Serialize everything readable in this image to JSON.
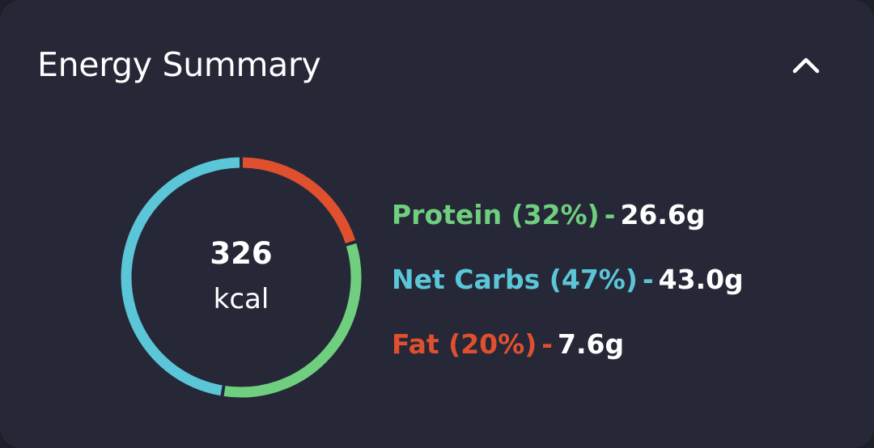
{
  "card": {
    "title": "Energy Summary",
    "collapse_icon": "chevron-up-icon"
  },
  "energy": {
    "value": "326",
    "unit": "kcal"
  },
  "macros": [
    {
      "key": "protein",
      "label": "Protein (32%)",
      "separator": "-",
      "amount": "26.6g",
      "percent": 32,
      "color": "#6fcf7f"
    },
    {
      "key": "net_carbs",
      "label": "Net Carbs (47%)",
      "separator": "-",
      "amount": "43.0g",
      "percent": 47,
      "color": "#5bc6d8"
    },
    {
      "key": "fat",
      "label": "Fat (20%)",
      "separator": "-",
      "amount": "7.6g",
      "percent": 20,
      "color": "#e0502e"
    }
  ],
  "colors": {
    "background": "#262838",
    "text": "#ffffff"
  }
}
